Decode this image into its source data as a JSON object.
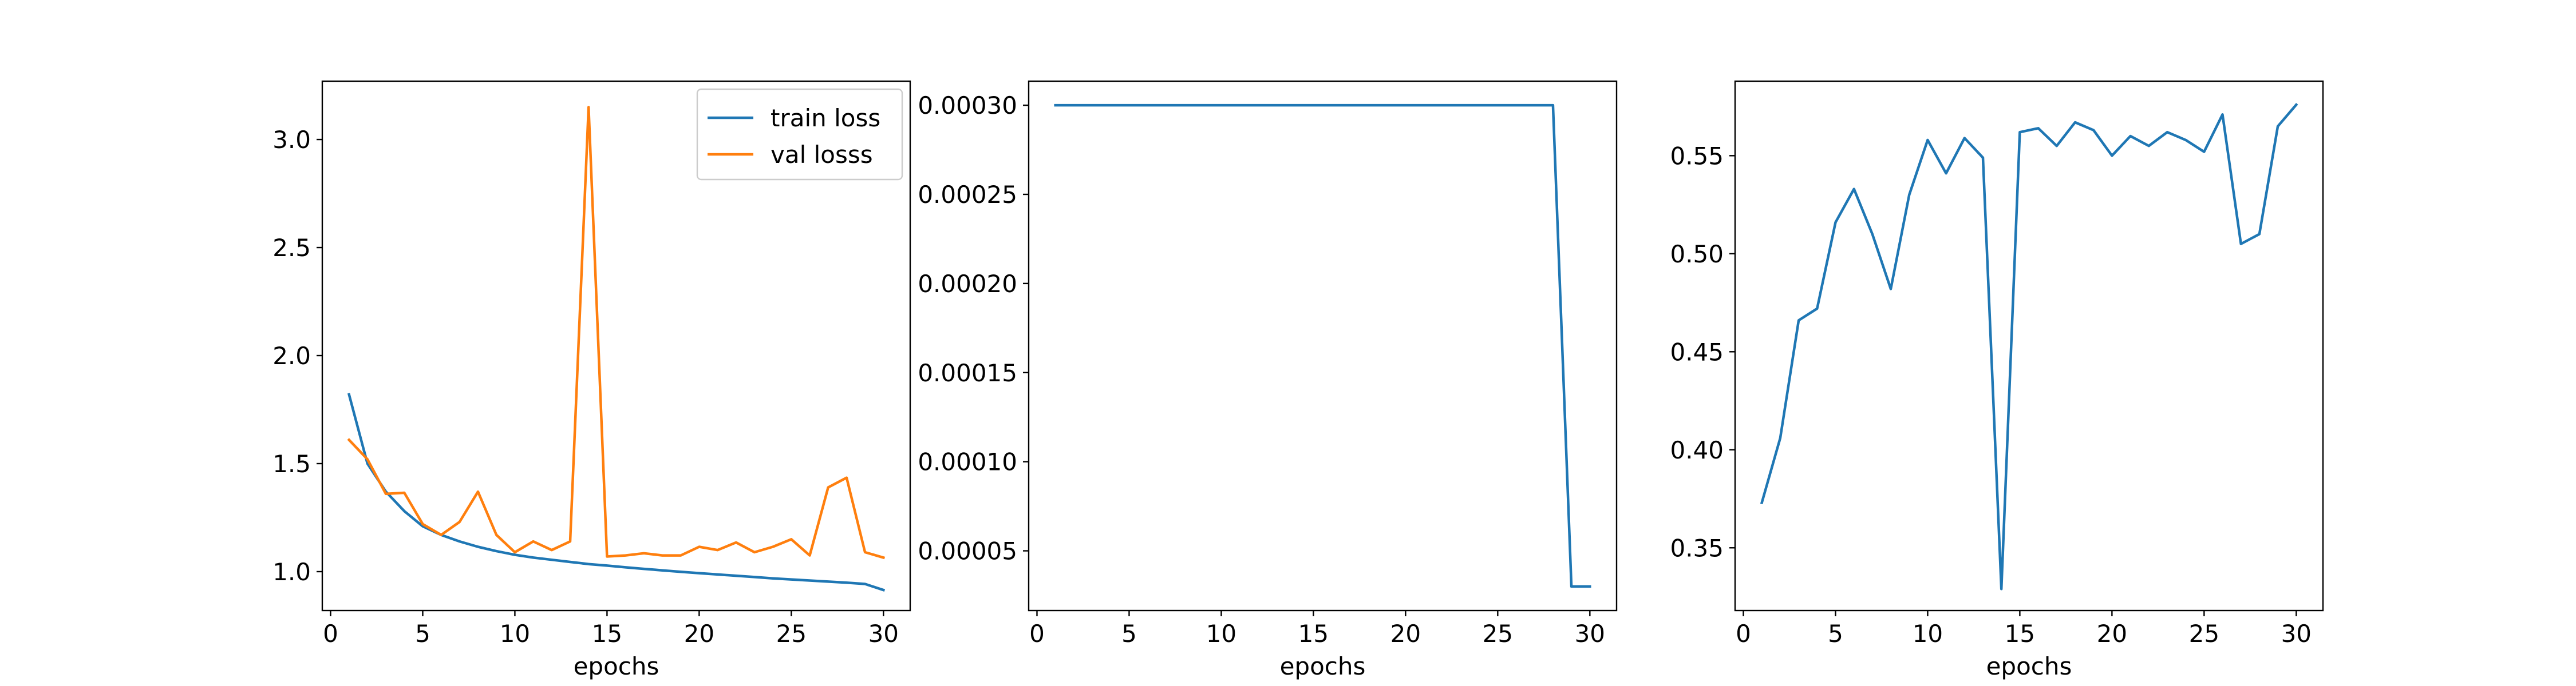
{
  "colors": {
    "train": "#1f77b4",
    "val": "#ff7f0e"
  },
  "chart_data": [
    {
      "type": "line",
      "xlabel": "epochs",
      "ylabel": "",
      "xlim": [
        -0.45,
        31.45
      ],
      "ylim": [
        0.82,
        3.27
      ],
      "xticks": [
        0,
        5,
        10,
        15,
        20,
        25,
        30
      ],
      "yticks": [
        1.0,
        1.5,
        2.0,
        2.5,
        3.0
      ],
      "ytick_labels": [
        "1.0",
        "1.5",
        "2.0",
        "2.5",
        "3.0"
      ],
      "grid": false,
      "legend": "top-right",
      "x": [
        1,
        2,
        3,
        4,
        5,
        6,
        7,
        8,
        9,
        10,
        11,
        12,
        13,
        14,
        15,
        16,
        17,
        18,
        19,
        20,
        21,
        22,
        23,
        24,
        25,
        26,
        27,
        28,
        29,
        30
      ],
      "series": [
        {
          "name": "train loss",
          "color": "#1f77b4",
          "values": [
            1.82,
            1.5,
            1.37,
            1.28,
            1.21,
            1.17,
            1.14,
            1.115,
            1.095,
            1.078,
            1.065,
            1.055,
            1.045,
            1.035,
            1.028,
            1.02,
            1.013,
            1.006,
            0.999,
            0.993,
            0.987,
            0.981,
            0.975,
            0.969,
            0.964,
            0.959,
            0.954,
            0.949,
            0.943,
            0.915
          ]
        },
        {
          "name": "val losss",
          "color": "#ff7f0e",
          "values": [
            1.61,
            1.52,
            1.36,
            1.365,
            1.22,
            1.17,
            1.23,
            1.37,
            1.17,
            1.09,
            1.14,
            1.1,
            1.14,
            3.15,
            1.07,
            1.075,
            1.085,
            1.075,
            1.075,
            1.115,
            1.1,
            1.135,
            1.09,
            1.115,
            1.15,
            1.075,
            1.39,
            1.435,
            1.09,
            1.065
          ]
        }
      ]
    },
    {
      "type": "line",
      "xlabel": "epochs",
      "ylabel": "",
      "xlim": [
        -0.45,
        31.45
      ],
      "ylim": [
        1.65e-05,
        0.0003135
      ],
      "xticks": [
        0,
        5,
        10,
        15,
        20,
        25,
        30
      ],
      "yticks": [
        5e-05,
        0.0001,
        0.00015,
        0.0002,
        0.00025,
        0.0003
      ],
      "ytick_labels": [
        "0.00005",
        "0.00010",
        "0.00015",
        "0.00020",
        "0.00025",
        "0.00030"
      ],
      "grid": false,
      "x": [
        1,
        2,
        3,
        4,
        5,
        6,
        7,
        8,
        9,
        10,
        11,
        12,
        13,
        14,
        15,
        16,
        17,
        18,
        19,
        20,
        21,
        22,
        23,
        24,
        25,
        26,
        27,
        28,
        29,
        30
      ],
      "series": [
        {
          "color": "#1f77b4",
          "values": [
            0.0003,
            0.0003,
            0.0003,
            0.0003,
            0.0003,
            0.0003,
            0.0003,
            0.0003,
            0.0003,
            0.0003,
            0.0003,
            0.0003,
            0.0003,
            0.0003,
            0.0003,
            0.0003,
            0.0003,
            0.0003,
            0.0003,
            0.0003,
            0.0003,
            0.0003,
            0.0003,
            0.0003,
            0.0003,
            0.0003,
            0.0003,
            0.0003,
            3e-05,
            3e-05
          ]
        }
      ]
    },
    {
      "type": "line",
      "xlabel": "epochs",
      "ylabel": "",
      "xlim": [
        -0.45,
        31.45
      ],
      "ylim": [
        0.318,
        0.588
      ],
      "xticks": [
        0,
        5,
        10,
        15,
        20,
        25,
        30
      ],
      "yticks": [
        0.35,
        0.4,
        0.45,
        0.5,
        0.55
      ],
      "ytick_labels": [
        "0.35",
        "0.40",
        "0.45",
        "0.50",
        "0.55"
      ],
      "grid": false,
      "x": [
        1,
        2,
        3,
        4,
        5,
        6,
        7,
        8,
        9,
        10,
        11,
        12,
        13,
        14,
        15,
        16,
        17,
        18,
        19,
        20,
        21,
        22,
        23,
        24,
        25,
        26,
        27,
        28,
        29,
        30
      ],
      "series": [
        {
          "color": "#1f77b4",
          "values": [
            0.373,
            0.406,
            0.466,
            0.472,
            0.516,
            0.533,
            0.51,
            0.482,
            0.53,
            0.558,
            0.541,
            0.559,
            0.549,
            0.329,
            0.562,
            0.564,
            0.555,
            0.567,
            0.563,
            0.55,
            0.56,
            0.555,
            0.562,
            0.558,
            0.552,
            0.571,
            0.505,
            0.51,
            0.565,
            0.576
          ]
        }
      ]
    }
  ]
}
